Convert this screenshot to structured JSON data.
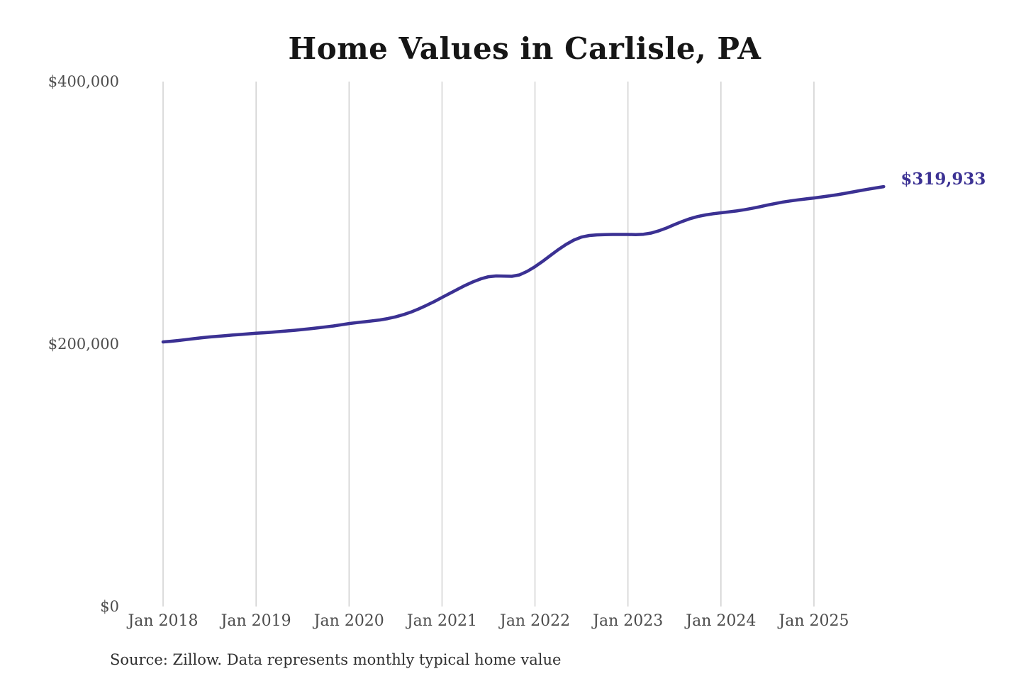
{
  "source": "Source: Zillow. Data represents monthly typical home value",
  "colors": {
    "line": "#3b3193",
    "grid": "#c9c9c9",
    "title": "#161616",
    "axis_label": "#4d4d4d",
    "end_label": "#3b3193"
  },
  "chart_data": {
    "type": "line",
    "title": "Home Values in Carlisle, PA",
    "xlabel": "",
    "ylabel": "",
    "x_start": "Jan 2018",
    "x_end": "Oct 2025",
    "x_frequency": "monthly",
    "x_tick_labels": [
      "Jan 2018",
      "Jan 2019",
      "Jan 2020",
      "Jan 2021",
      "Jan 2022",
      "Jan 2023",
      "Jan 2024",
      "Jan 2025"
    ],
    "x_tick_month_indices": [
      0,
      12,
      24,
      36,
      48,
      60,
      72,
      84
    ],
    "y_ticks": [
      {
        "value": 0,
        "label": "$0"
      },
      {
        "value": 200000,
        "label": "$200,000"
      },
      {
        "value": 400000,
        "label": "$400,000"
      }
    ],
    "ylim": [
      0,
      400000
    ],
    "grid": "vertical-only",
    "legend": "none",
    "end_annotation": "$319,933",
    "latest_value": 319933,
    "series": [
      {
        "name": "Monthly typical home value",
        "values": [
          201600,
          202100,
          202700,
          203400,
          204100,
          204800,
          205400,
          205900,
          206400,
          206900,
          207300,
          207800,
          208200,
          208600,
          209000,
          209500,
          210000,
          210500,
          211100,
          211700,
          212400,
          213100,
          213800,
          214700,
          215600,
          216300,
          217000,
          217700,
          218400,
          219400,
          220700,
          222400,
          224400,
          226800,
          229500,
          232400,
          235500,
          238600,
          241700,
          244700,
          247400,
          249700,
          251300,
          251900,
          251800,
          251600,
          252700,
          255400,
          259000,
          263100,
          267500,
          271900,
          275900,
          279200,
          281500,
          282700,
          283200,
          283400,
          283500,
          283500,
          283500,
          283400,
          283700,
          284600,
          286300,
          288500,
          291000,
          293400,
          295500,
          297200,
          298400,
          299300,
          300000,
          300700,
          301400,
          302300,
          303400,
          304600,
          305900,
          307100,
          308200,
          309100,
          309900,
          310600,
          311300,
          312100,
          312900,
          313800,
          314800,
          315900,
          317000,
          318000,
          319000,
          319933
        ]
      }
    ]
  }
}
